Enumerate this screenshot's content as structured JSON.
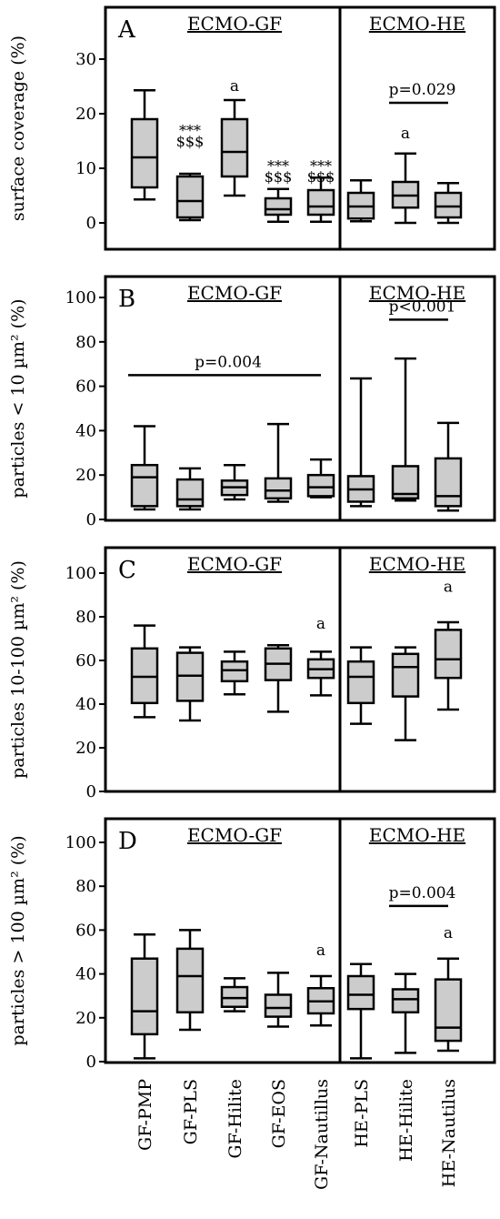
{
  "chart_data": [
    {
      "type": "boxplot",
      "panel": "A",
      "ylabel": "surface coverage (%)",
      "ylim": [
        0,
        35
      ],
      "yticks": [
        0,
        10,
        20,
        30
      ],
      "groups": [
        {
          "label": "ECMO-GF",
          "categories": [
            0,
            1,
            2,
            3,
            4
          ]
        },
        {
          "label": "ECMO-HE",
          "categories": [
            5,
            6,
            7
          ]
        }
      ],
      "categories": [
        "GF-PMP",
        "GF-PLS",
        "GF-Hilite",
        "GF-EOS",
        "GF-Nautillus",
        "HE-PLS",
        "HE-Hilite",
        "HE-Nautilus"
      ],
      "boxes": [
        {
          "min": 4.3,
          "q1": 6.5,
          "median": 12,
          "q3": 19,
          "max": 24.3
        },
        {
          "min": 0.5,
          "q1": 1,
          "median": 4,
          "q3": 8.5,
          "max": 9
        },
        {
          "min": 5,
          "q1": 8.5,
          "median": 13,
          "q3": 19,
          "max": 22.5
        },
        {
          "min": 0.2,
          "q1": 1.5,
          "median": 2.5,
          "q3": 4.5,
          "max": 6.2
        },
        {
          "min": 0.2,
          "q1": 1.5,
          "median": 3,
          "q3": 6,
          "max": 8.3
        },
        {
          "min": 0.3,
          "q1": 0.8,
          "median": 3,
          "q3": 5.5,
          "max": 7.8
        },
        {
          "min": 0,
          "q1": 2.8,
          "median": 5,
          "q3": 7.5,
          "max": 12.7
        },
        {
          "min": 0,
          "q1": 1,
          "median": 3,
          "q3": 5.5,
          "max": 7.3
        }
      ],
      "annotations": [
        {
          "text": "a",
          "category": 2,
          "y": 25.2
        },
        {
          "text": "***",
          "category": 1,
          "y": 17
        },
        {
          "text": "$$$",
          "category": 1,
          "y": 15
        },
        {
          "text": "***",
          "category": 3,
          "y": 10.5
        },
        {
          "text": "$$$",
          "category": 3,
          "y": 8.5
        },
        {
          "text": "***",
          "category": 4,
          "y": 10.5
        },
        {
          "text": "$$$",
          "category": 4,
          "y": 8.5
        },
        {
          "text": "a",
          "category": 6,
          "y": 16.5
        }
      ],
      "brackets": [
        {
          "from": 6,
          "to": 7,
          "y": 22,
          "text": "p=0.029"
        }
      ]
    },
    {
      "type": "boxplot",
      "panel": "B",
      "ylabel": "particles < 10 µm² (%)",
      "ylim": [
        0,
        110
      ],
      "yticks": [
        0,
        20,
        40,
        60,
        80,
        100
      ],
      "groups": [
        {
          "label": "ECMO-GF",
          "categories": [
            0,
            1,
            2,
            3,
            4
          ]
        },
        {
          "label": "ECMO-HE",
          "categories": [
            5,
            6,
            7
          ]
        }
      ],
      "categories": [
        "GF-PMP",
        "GF-PLS",
        "GF-Hilite",
        "GF-EOS",
        "GF-Nautillus",
        "HE-PLS",
        "HE-Hilite",
        "HE-Nautilus"
      ],
      "boxes": [
        {
          "min": 4.5,
          "q1": 6,
          "median": 19,
          "q3": 24.5,
          "max": 42
        },
        {
          "min": 4.5,
          "q1": 6,
          "median": 9,
          "q3": 18,
          "max": 23
        },
        {
          "min": 9,
          "q1": 11,
          "median": 14.5,
          "q3": 17.5,
          "max": 24.5
        },
        {
          "min": 8,
          "q1": 9.5,
          "median": 13,
          "q3": 18.5,
          "max": 43
        },
        {
          "min": 10,
          "q1": 10.5,
          "median": 14.5,
          "q3": 20,
          "max": 27
        },
        {
          "min": 6,
          "q1": 8,
          "median": 13.5,
          "q3": 19.5,
          "max": 63.5
        },
        {
          "min": 8.5,
          "q1": 9.5,
          "median": 11.5,
          "q3": 24,
          "max": 72.5
        },
        {
          "min": 4,
          "q1": 6,
          "median": 10.5,
          "q3": 27.5,
          "max": 43.5
        }
      ],
      "annotations": [],
      "brackets": [
        {
          "from": 0,
          "to": 4,
          "y": 65,
          "text": "p=0.004"
        },
        {
          "from": 6,
          "to": 7,
          "y": 90,
          "text": "p<0.001"
        }
      ]
    },
    {
      "type": "boxplot",
      "panel": "C",
      "ylabel": "particles 10-100 µm² (%)",
      "ylim": [
        0,
        110
      ],
      "yticks": [
        0,
        20,
        40,
        60,
        80,
        100
      ],
      "groups": [
        {
          "label": "ECMO-GF",
          "categories": [
            0,
            1,
            2,
            3,
            4
          ]
        },
        {
          "label": "ECMO-HE",
          "categories": [
            5,
            6,
            7
          ]
        }
      ],
      "categories": [
        "GF-PMP",
        "GF-PLS",
        "GF-Hilite",
        "GF-EOS",
        "GF-Nautillus",
        "HE-PLS",
        "HE-Hilite",
        "HE-Nautilus"
      ],
      "boxes": [
        {
          "min": 34,
          "q1": 40.5,
          "median": 52.5,
          "q3": 65.5,
          "max": 76
        },
        {
          "min": 32.5,
          "q1": 41.5,
          "median": 53,
          "q3": 63.5,
          "max": 66
        },
        {
          "min": 44.5,
          "q1": 50.5,
          "median": 55.5,
          "q3": 59.5,
          "max": 64
        },
        {
          "min": 36.5,
          "q1": 51,
          "median": 58.5,
          "q3": 65.5,
          "max": 67
        },
        {
          "min": 44,
          "q1": 52,
          "median": 56,
          "q3": 60.5,
          "max": 64
        },
        {
          "min": 31,
          "q1": 40.5,
          "median": 52.5,
          "q3": 59.5,
          "max": 66
        },
        {
          "min": 23.5,
          "q1": 43.5,
          "median": 57,
          "q3": 63,
          "max": 66
        },
        {
          "min": 37.5,
          "q1": 52,
          "median": 60.5,
          "q3": 74,
          "max": 77.5
        }
      ],
      "annotations": [
        {
          "text": "a",
          "category": 4,
          "y": 77
        },
        {
          "text": "a",
          "category": 7,
          "y": 94
        }
      ],
      "brackets": []
    },
    {
      "type": "boxplot",
      "panel": "D",
      "ylabel": "particles > 100 µm² (%)",
      "ylim": [
        0,
        110
      ],
      "yticks": [
        0,
        20,
        40,
        60,
        80,
        100
      ],
      "groups": [
        {
          "label": "ECMO-GF",
          "categories": [
            0,
            1,
            2,
            3,
            4
          ]
        },
        {
          "label": "ECMO-HE",
          "categories": [
            5,
            6,
            7
          ]
        }
      ],
      "categories": [
        "GF-PMP",
        "GF-PLS",
        "GF-Hilite",
        "GF-EOS",
        "GF-Nautillus",
        "HE-PLS",
        "HE-Hilite",
        "HE-Nautilus"
      ],
      "boxes": [
        {
          "min": 1.5,
          "q1": 12.5,
          "median": 23,
          "q3": 47,
          "max": 58
        },
        {
          "min": 14.5,
          "q1": 22.5,
          "median": 39,
          "q3": 51.5,
          "max": 60
        },
        {
          "min": 23,
          "q1": 25,
          "median": 29,
          "q3": 34,
          "max": 38
        },
        {
          "min": 16,
          "q1": 20.5,
          "median": 24.5,
          "q3": 30.5,
          "max": 40.5
        },
        {
          "min": 16.5,
          "q1": 22,
          "median": 27.5,
          "q3": 33.5,
          "max": 39
        },
        {
          "min": 1.5,
          "q1": 24,
          "median": 30.5,
          "q3": 39,
          "max": 44.5
        },
        {
          "min": 4,
          "q1": 22.5,
          "median": 28.5,
          "q3": 33,
          "max": 40
        },
        {
          "min": 5,
          "q1": 9.5,
          "median": 15.5,
          "q3": 37.5,
          "max": 47
        }
      ],
      "annotations": [
        {
          "text": "a",
          "category": 4,
          "y": 51
        },
        {
          "text": "a",
          "category": 7,
          "y": 59
        }
      ],
      "brackets": [
        {
          "from": 6,
          "to": 7,
          "y": 71,
          "text": "p=0.004"
        }
      ]
    }
  ],
  "x_tick_labels": [
    "GF-PMP",
    "GF-PLS",
    "GF-Hilite",
    "GF-EOS",
    "GF-Nautillus",
    "HE-PLS",
    "HE-Hilite",
    "HE-Nautilus"
  ],
  "colors": {
    "box_fill": "#cccccc",
    "stroke": "#000000",
    "background": "#ffffff"
  }
}
